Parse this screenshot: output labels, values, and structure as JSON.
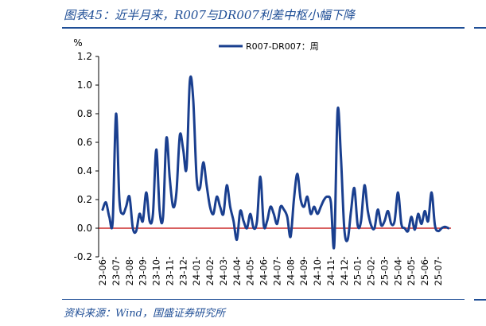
{
  "header": {
    "title": "图表45：近半月来，R007与DR007利差中枢小幅下降"
  },
  "footer": {
    "source": "资料来源：Wind，国盛证券研究所"
  },
  "colors": {
    "accent": "#1f4e96",
    "series": "#1a3f8f",
    "zero_line": "#c00000"
  },
  "chart_data": {
    "type": "line",
    "title": "",
    "ylabel": "%",
    "xlabel": "",
    "ylim": [
      -0.2,
      1.2
    ],
    "yticks": [
      "1.2",
      "1.0",
      "0.8",
      "0.6",
      "0.4",
      "0.2",
      "0.0",
      "-0.2"
    ],
    "ytick_values": [
      1.2,
      1.0,
      0.8,
      0.6,
      0.4,
      0.2,
      0.0,
      -0.2
    ],
    "categories": [
      "23-06",
      "23-07",
      "23-08",
      "23-09",
      "23-10",
      "23-11",
      "23-12",
      "24-01",
      "24-02",
      "24-03",
      "24-04",
      "24-05",
      "24-06",
      "24-07",
      "24-08",
      "24-09",
      "24-10",
      "24-11",
      "24-12",
      "25-01",
      "25-02",
      "25-03",
      "25-04",
      "25-05",
      "25-06",
      "25-07"
    ],
    "legend": "R007-DR007：周",
    "legend_position": "top-center",
    "series": [
      {
        "name": "R007-DR007：周",
        "x": [
          0,
          0.25,
          0.5,
          0.75,
          1.0,
          1.25,
          1.5,
          1.75,
          2.0,
          2.25,
          2.5,
          2.75,
          3.0,
          3.25,
          3.5,
          3.75,
          4.0,
          4.25,
          4.5,
          4.75,
          5.0,
          5.25,
          5.5,
          5.75,
          6.0,
          6.25,
          6.5,
          6.75,
          7.0,
          7.25,
          7.5,
          7.75,
          8.0,
          8.25,
          8.5,
          8.75,
          9.0,
          9.25,
          9.5,
          9.75,
          10.0,
          10.25,
          10.5,
          10.75,
          11.0,
          11.25,
          11.5,
          11.75,
          12.0,
          12.25,
          12.5,
          12.75,
          13.0,
          13.25,
          13.5,
          13.75,
          14.0,
          14.25,
          14.5,
          14.75,
          15.0,
          15.25,
          15.5,
          15.75,
          16.0,
          16.25,
          16.5,
          16.75,
          17.0,
          17.25,
          17.5,
          17.75,
          18.0,
          18.25,
          18.5,
          18.75,
          19.0,
          19.25,
          19.5,
          19.75,
          20.0,
          20.25,
          20.5,
          20.75,
          21.0,
          21.25,
          21.5,
          21.75,
          22.0,
          22.25,
          22.5,
          22.75,
          23.0,
          23.25,
          23.5,
          23.75,
          24.0,
          24.25,
          24.5,
          24.75,
          25.0,
          25.25,
          25.5,
          25.75
        ],
        "values": [
          0.13,
          0.18,
          0.08,
          0.05,
          0.8,
          0.2,
          0.1,
          0.15,
          0.22,
          0.0,
          -0.02,
          0.1,
          0.05,
          0.25,
          0.05,
          0.1,
          0.55,
          0.12,
          0.08,
          0.63,
          0.35,
          0.15,
          0.25,
          0.65,
          0.55,
          0.42,
          1.03,
          0.9,
          0.35,
          0.28,
          0.46,
          0.3,
          0.15,
          0.1,
          0.22,
          0.15,
          0.1,
          0.3,
          0.15,
          0.05,
          -0.08,
          0.12,
          0.05,
          0.0,
          0.1,
          0.0,
          0.05,
          0.36,
          0.02,
          0.05,
          0.15,
          0.1,
          0.03,
          0.15,
          0.13,
          0.08,
          -0.06,
          0.2,
          0.38,
          0.2,
          0.15,
          0.22,
          0.1,
          0.15,
          0.1,
          0.15,
          0.2,
          0.22,
          0.18,
          -0.12,
          0.82,
          0.5,
          0.0,
          -0.08,
          0.12,
          0.28,
          0.02,
          0.05,
          0.3,
          0.12,
          0.02,
          0.0,
          0.13,
          0.02,
          0.05,
          0.12,
          0.03,
          0.05,
          0.25,
          0.03,
          0.0,
          -0.02,
          0.08,
          -0.01,
          0.1,
          0.03,
          0.12,
          0.05,
          0.25,
          0.02,
          -0.02,
          0.0,
          0.01,
          0.0
        ]
      }
    ]
  }
}
